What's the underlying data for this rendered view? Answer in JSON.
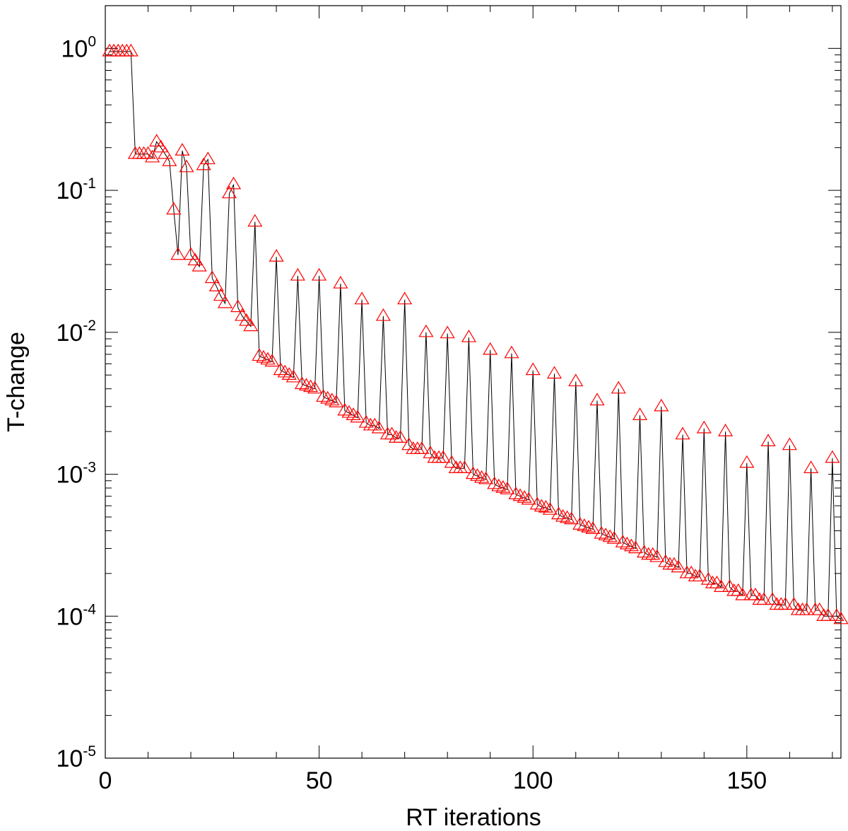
{
  "chart_data": {
    "type": "scatter",
    "title": "",
    "xlabel": "RT iterations",
    "ylabel": "T-change",
    "xlim": [
      0,
      172
    ],
    "ylim": [
      1e-05,
      2
    ],
    "yscale": "log",
    "grid": false,
    "legend": "none",
    "marker": "triangle-open",
    "marker_color": "#ff0000",
    "line_color": "#000000",
    "x_ticks": [
      {
        "value": 0,
        "label": "0"
      },
      {
        "value": 50,
        "label": "50"
      },
      {
        "value": 100,
        "label": "100"
      },
      {
        "value": 150,
        "label": "150"
      }
    ],
    "y_ticks": [
      {
        "value": 1,
        "base": "10",
        "exp": "0"
      },
      {
        "value": 0.1,
        "base": "10",
        "exp": "-1"
      },
      {
        "value": 0.01,
        "base": "10",
        "exp": "-2"
      },
      {
        "value": 0.001,
        "base": "10",
        "exp": "-3"
      },
      {
        "value": 0.0001,
        "base": "10",
        "exp": "-4"
      },
      {
        "value": 1e-05,
        "base": "10",
        "exp": "-5"
      }
    ],
    "series": [
      {
        "x": [
          1,
          2,
          3,
          4,
          5,
          6,
          7,
          8,
          9,
          10,
          11,
          12,
          13,
          14,
          15,
          16,
          17,
          18,
          19,
          20,
          21,
          22,
          23,
          24,
          25,
          26,
          27,
          28,
          29,
          30,
          31,
          32,
          33,
          34,
          35,
          36,
          37,
          38,
          39,
          40,
          41,
          42,
          43,
          44,
          45,
          46,
          47,
          48,
          49,
          50,
          51,
          52,
          53,
          54,
          55,
          56,
          57,
          58,
          59,
          60,
          61,
          62,
          63,
          64,
          65,
          66,
          67,
          68,
          69,
          70,
          71,
          72,
          73,
          74,
          75,
          76,
          77,
          78,
          79,
          80,
          81,
          82,
          83,
          84,
          85,
          86,
          87,
          88,
          89,
          90,
          91,
          92,
          93,
          94,
          95,
          96,
          97,
          98,
          99,
          100,
          101,
          102,
          103,
          104,
          105,
          106,
          107,
          108,
          109,
          110,
          111,
          112,
          113,
          114,
          115,
          116,
          117,
          118,
          119,
          120,
          121,
          122,
          123,
          124,
          125,
          126,
          127,
          128,
          129,
          130,
          131,
          132,
          133,
          134,
          135,
          136,
          137,
          138,
          139,
          140,
          141,
          142,
          143,
          144,
          145,
          146,
          147,
          148,
          149,
          150,
          151,
          152,
          153,
          154,
          155,
          156,
          157,
          158,
          159,
          160,
          161,
          162,
          163,
          164,
          165,
          166,
          167,
          168,
          169,
          170,
          171,
          172
        ],
        "y": [
          0.95,
          0.95,
          0.95,
          0.95,
          0.95,
          0.95,
          0.18,
          0.18,
          0.18,
          0.18,
          0.17,
          0.22,
          0.2,
          0.18,
          0.16,
          0.073,
          0.035,
          0.19,
          0.145,
          0.035,
          0.032,
          0.029,
          0.15,
          0.165,
          0.024,
          0.021,
          0.018,
          0.016,
          0.095,
          0.11,
          0.015,
          0.013,
          0.012,
          0.011,
          0.06,
          0.0068,
          0.0066,
          0.0064,
          0.0062,
          0.034,
          0.0054,
          0.0052,
          0.005,
          0.0048,
          0.025,
          0.0043,
          0.0042,
          0.0041,
          0.004,
          0.025,
          0.0035,
          0.0034,
          0.0033,
          0.0032,
          0.022,
          0.0028,
          0.0027,
          0.0026,
          0.0025,
          0.017,
          0.0023,
          0.0022,
          0.0022,
          0.0021,
          0.013,
          0.0019,
          0.0019,
          0.0018,
          0.0018,
          0.017,
          0.0016,
          0.0015,
          0.0015,
          0.0015,
          0.01,
          0.0014,
          0.0013,
          0.0013,
          0.0013,
          0.0098,
          0.0012,
          0.0011,
          0.0011,
          0.0011,
          0.0092,
          0.001,
          0.00097,
          0.00094,
          0.00092,
          0.0075,
          0.00085,
          0.00082,
          0.0008,
          0.00078,
          0.0071,
          0.00072,
          0.0007,
          0.00068,
          0.00066,
          0.0054,
          0.00061,
          0.00059,
          0.00058,
          0.00056,
          0.0051,
          0.00052,
          0.0005,
          0.00049,
          0.00048,
          0.0045,
          0.00044,
          0.00043,
          0.00042,
          0.00041,
          0.0033,
          0.00038,
          0.00037,
          0.00036,
          0.00035,
          0.004,
          0.00033,
          0.00032,
          0.00031,
          0.0003,
          0.0026,
          0.00028,
          0.00027,
          0.00027,
          0.00026,
          0.003,
          0.00024,
          0.00023,
          0.00023,
          0.00022,
          0.0019,
          0.0002,
          0.0002,
          0.00019,
          0.00019,
          0.0021,
          0.00018,
          0.00017,
          0.00017,
          0.00016,
          0.002,
          0.00016,
          0.00015,
          0.00015,
          0.00014,
          0.0012,
          0.00014,
          0.00014,
          0.00013,
          0.00013,
          0.0017,
          0.00013,
          0.00012,
          0.00012,
          0.00012,
          0.0016,
          0.00012,
          0.00011,
          0.00011,
          0.00011,
          0.0011,
          0.00011,
          0.00011,
          0.0001,
          0.0001,
          0.0013,
          0.0001,
          9.5e-05
        ]
      }
    ]
  }
}
